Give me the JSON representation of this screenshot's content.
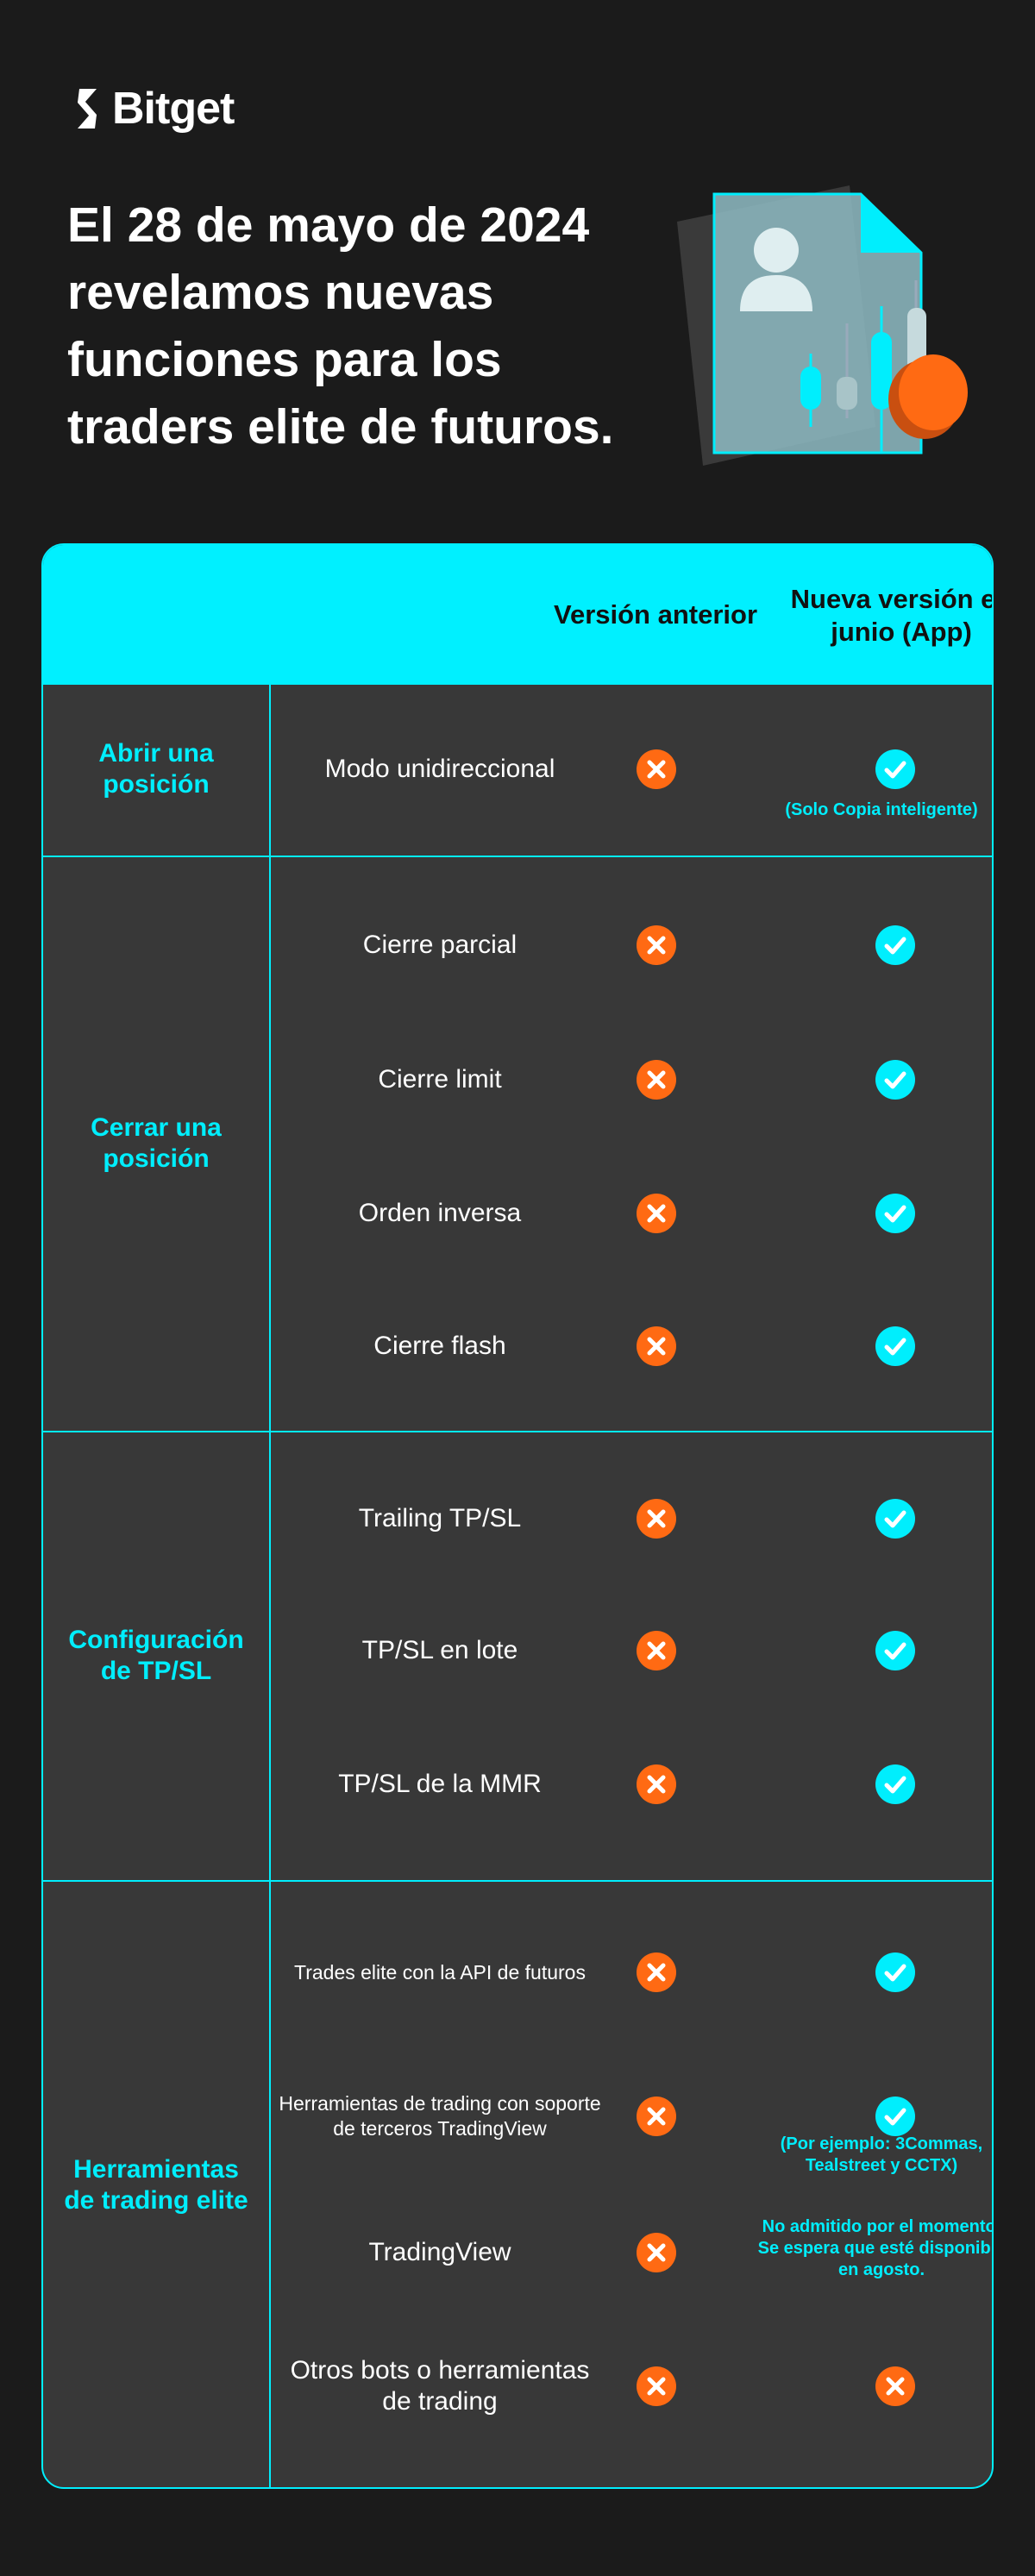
{
  "brand": {
    "name": "Bitget"
  },
  "headline": "El 28 de mayo de 2024 revelamos nuevas funciones para los traders elite de futuros.",
  "colors": {
    "accent": "#00f0ff",
    "cross": "#ff6a13",
    "check": "#00eefd",
    "bg": "#1b1b1b",
    "panel": "#383838"
  },
  "table": {
    "header": {
      "previous": "Versión anterior",
      "new": "Nueva versión en junio (App)"
    },
    "sections": [
      {
        "category": "Abrir una posición",
        "rows": [
          {
            "feature": "Modo unidireccional",
            "previous": "cross",
            "new": "check",
            "note": "(Solo Copia inteligente)"
          }
        ]
      },
      {
        "category": "Cerrar una posición",
        "rows": [
          {
            "feature": "Cierre parcial",
            "previous": "cross",
            "new": "check"
          },
          {
            "feature": "Cierre limit",
            "previous": "cross",
            "new": "check"
          },
          {
            "feature": "Orden inversa",
            "previous": "cross",
            "new": "check"
          },
          {
            "feature": "Cierre flash",
            "previous": "cross",
            "new": "check"
          }
        ]
      },
      {
        "category": "Configuración de TP/SL",
        "rows": [
          {
            "feature": "Trailing TP/SL",
            "previous": "cross",
            "new": "check"
          },
          {
            "feature": "TP/SL en lote",
            "previous": "cross",
            "new": "check"
          },
          {
            "feature": "TP/SL de la MMR",
            "previous": "cross",
            "new": "check"
          }
        ]
      },
      {
        "category": "Herramientas de trading elite",
        "rows": [
          {
            "feature": "Trades elite con la API de futuros",
            "previous": "cross",
            "new": "check"
          },
          {
            "feature": "Herramientas de trading con soporte de terceros TradingView",
            "previous": "cross",
            "new": "check",
            "note": "(Por ejemplo: 3Commas, Tealstreet y CCTX)"
          },
          {
            "feature": "TradingView",
            "previous": "cross",
            "new": "none",
            "note": "No admitido por el momento. Se espera que esté disponible en agosto."
          },
          {
            "feature": "Otros bots o herramientas de trading",
            "previous": "cross",
            "new": "cross"
          }
        ]
      }
    ]
  }
}
